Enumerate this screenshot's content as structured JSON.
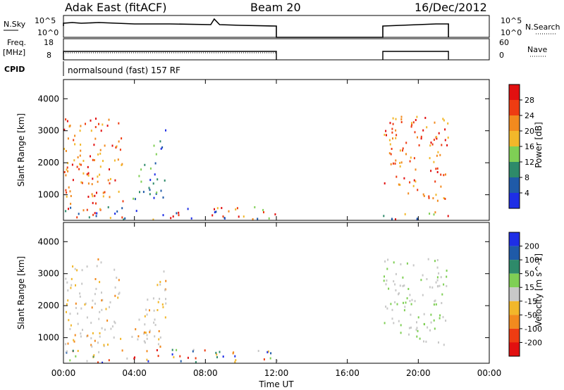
{
  "header": {
    "radar_title": "Adak East (fitACF)",
    "beam": "Beam 20",
    "date": "16/Dec/2012"
  },
  "noise_panel": {
    "left_label": "N.Sky",
    "right_label": "N.Search",
    "left_ticks": [
      "10^5",
      "10^0"
    ],
    "right_ticks": [
      "10^5",
      "10^0"
    ]
  },
  "freq_panel": {
    "left_label_1": "Freq.",
    "left_label_2": "[MHz]",
    "right_label": "Nave",
    "left_ticks": [
      "18",
      "8"
    ],
    "right_ticks": [
      "60",
      "0"
    ]
  },
  "cpid": {
    "label": "CPID",
    "value": "normalsound (fast) 157 RF"
  },
  "chart_data": [
    {
      "type": "heatmap",
      "panel": "power",
      "ylabel": "Slant Range [km]",
      "yticks": [
        "1000",
        "2000",
        "3000",
        "4000"
      ],
      "ylim": [
        200,
        4600
      ],
      "colorbar_label": "Power [dB]",
      "colorbar_ticks": [
        "4",
        "8",
        "12",
        "16",
        "20",
        "24",
        "28"
      ],
      "colorbar_colors": [
        "#1e2ee6",
        "#1f5aa8",
        "#2e8a6a",
        "#7fcf55",
        "#f2b72a",
        "#f28a1e",
        "#ee3c12",
        "#e21010"
      ],
      "regions": [
        {
          "t": [
            0.0,
            3.9
          ],
          "range": [
            750,
            3500
          ],
          "level": "high"
        },
        {
          "t": [
            3.3,
            5.8
          ],
          "range": [
            900,
            3300
          ],
          "level": "low"
        },
        {
          "t": [
            18.0,
            21.7
          ],
          "range": [
            650,
            3500
          ],
          "level": "high"
        },
        {
          "t": [
            0.0,
            12.0
          ],
          "range": [
            250,
            650
          ],
          "level": "mixed"
        },
        {
          "t": [
            18.0,
            21.7
          ],
          "range": [
            250,
            500
          ],
          "level": "mixed"
        }
      ]
    },
    {
      "type": "heatmap",
      "panel": "velocity",
      "ylabel": "Slant Range [km]",
      "yticks": [
        "1000",
        "2000",
        "3000",
        "4000"
      ],
      "ylim": [
        200,
        4600
      ],
      "xlabel": "Time UT",
      "xticks": [
        "00:00",
        "04:00",
        "08:00",
        "12:00",
        "16:00",
        "20:00",
        "00:00"
      ],
      "xlim": [
        0,
        24
      ],
      "colorbar_label": "Velocity [m s^-1]",
      "colorbar_ticks": [
        "200",
        "100",
        "50",
        "15",
        "-15",
        "-50",
        "-100",
        "-200"
      ],
      "colorbar_colors": [
        "#1e2ee6",
        "#1f5aa8",
        "#2e8a6a",
        "#7fcf55",
        "#c8c8c8",
        "#f2b72a",
        "#f28a1e",
        "#ee3c12",
        "#e21010"
      ],
      "regions": [
        {
          "t": [
            0.0,
            5.8
          ],
          "range": [
            750,
            3500
          ],
          "level": "slow"
        },
        {
          "t": [
            18.0,
            21.7
          ],
          "range": [
            650,
            3500
          ],
          "level": "slow-positive"
        },
        {
          "t": [
            0.0,
            12.0
          ],
          "range": [
            250,
            650
          ],
          "level": "mixed"
        }
      ]
    }
  ]
}
